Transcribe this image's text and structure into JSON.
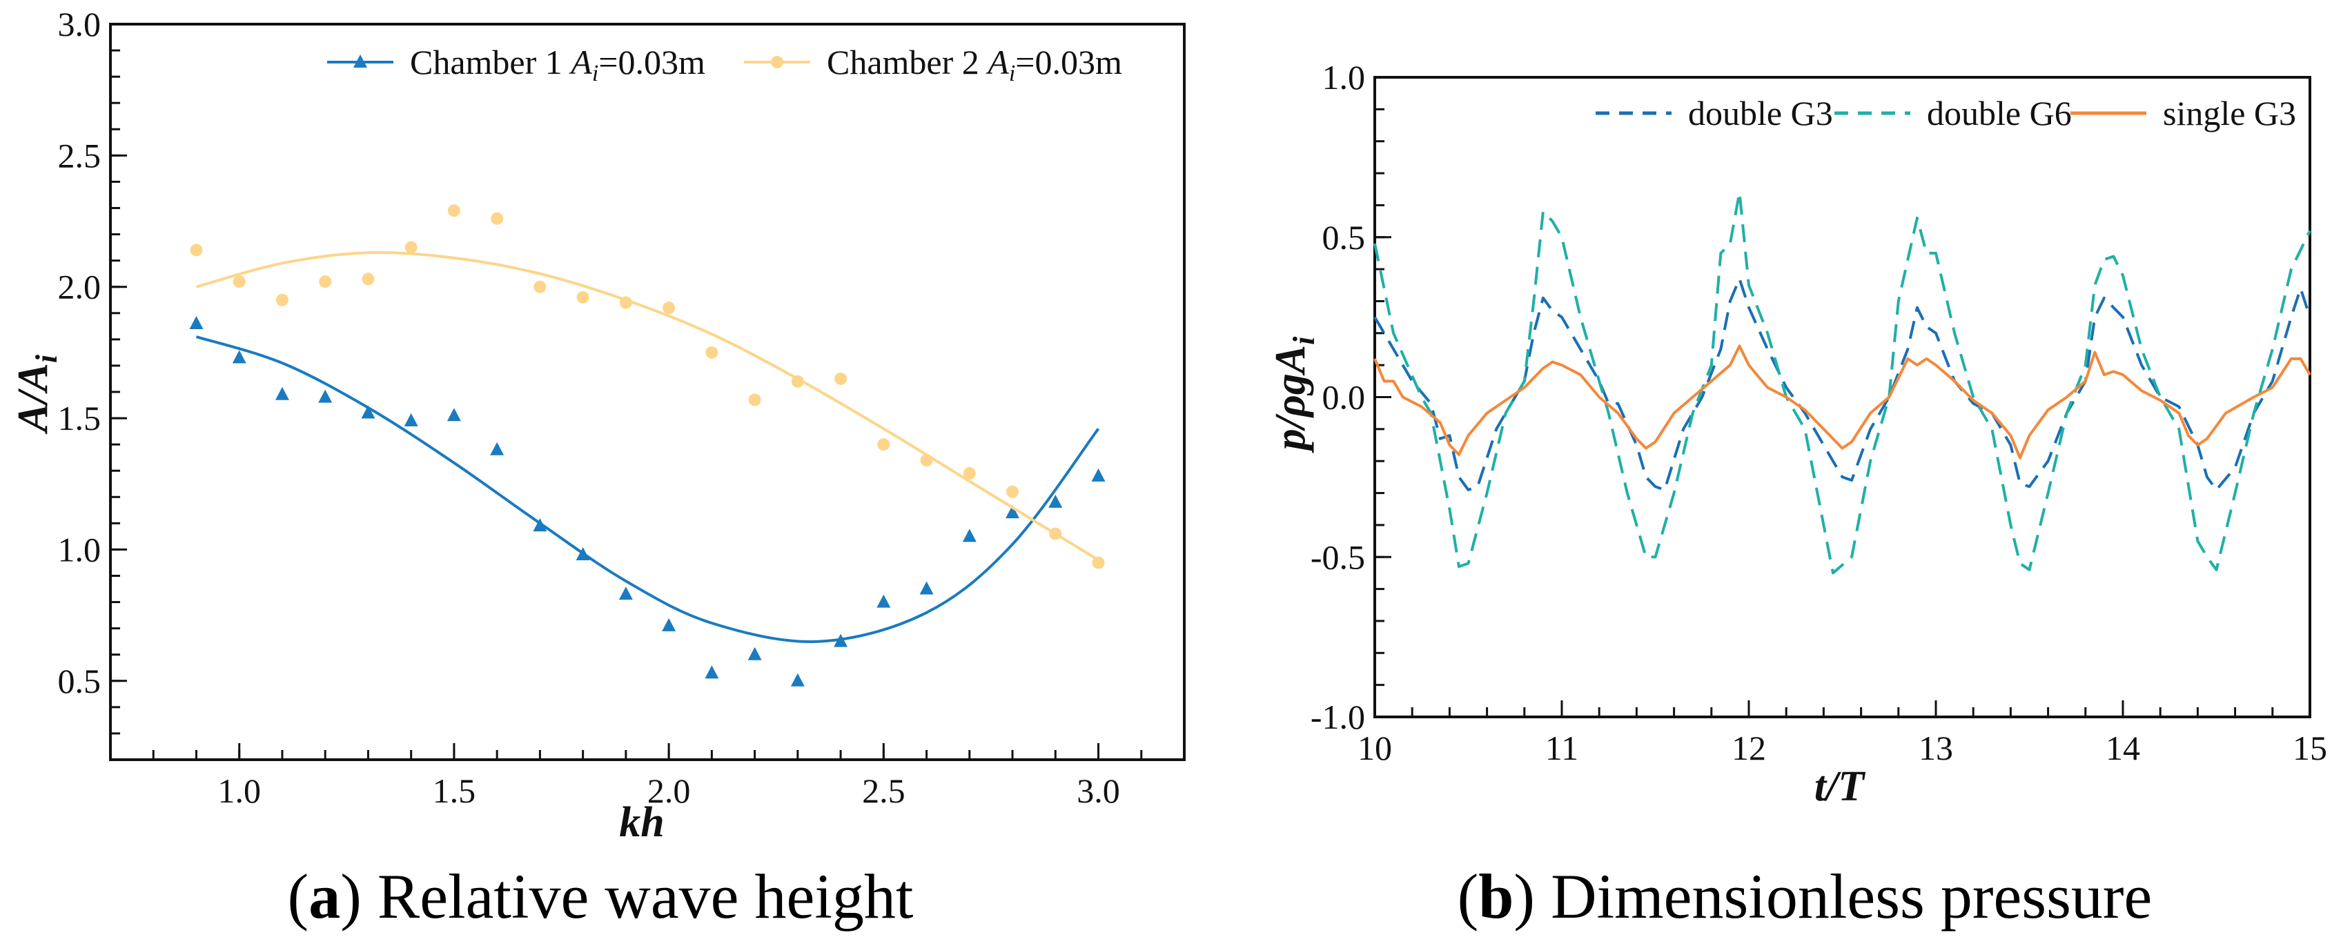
{
  "captions": {
    "a_label": "a",
    "a_text": "Relative wave height",
    "b_label": "b",
    "b_text": "Dimensionless pressure"
  },
  "chart_data": [
    {
      "type": "scatter",
      "title": "(a) Relative wave height",
      "xlabel": "kh",
      "ylabel_main": "A/A",
      "ylabel_sub": "i",
      "xlim": [
        0.7,
        3.2
      ],
      "ylim": [
        0.2,
        3.0
      ],
      "xticks": [
        "1.0",
        "1.5",
        "2.0",
        "2.5",
        "3.0"
      ],
      "yticks": [
        "0.5",
        "1.0",
        "1.5",
        "2.0",
        "2.5",
        "3.0"
      ],
      "grid": false,
      "legend_position": "top-right",
      "x": [
        0.9,
        1.0,
        1.1,
        1.2,
        1.3,
        1.4,
        1.5,
        1.6,
        1.7,
        1.8,
        1.9,
        2.0,
        2.1,
        2.2,
        2.3,
        2.4,
        2.5,
        2.6,
        2.7,
        2.8,
        2.9,
        3.0
      ],
      "series": [
        {
          "name_prefix": "Chamber 1",
          "name_var": "A",
          "name_sub": "i",
          "name_suffix": "=0.03m",
          "color": "#1a7bc0",
          "marker": "triangle",
          "values": [
            1.86,
            1.73,
            1.59,
            1.58,
            1.52,
            1.49,
            1.51,
            1.38,
            1.09,
            0.98,
            0.83,
            0.71,
            0.53,
            0.6,
            0.5,
            0.65,
            0.8,
            0.85,
            1.05,
            1.14,
            1.18,
            1.28
          ],
          "fit_x": [
            0.9,
            1.1,
            1.3,
            1.5,
            1.7,
            1.9,
            2.1,
            2.35,
            2.6,
            2.8,
            3.0
          ],
          "fit_y": [
            1.81,
            1.71,
            1.54,
            1.33,
            1.1,
            0.88,
            0.72,
            0.65,
            0.76,
            1.02,
            1.46
          ]
        },
        {
          "name_prefix": "Chamber 2",
          "name_var": "A",
          "name_sub": "i",
          "name_suffix": "=0.03m",
          "color": "#fdd58a",
          "marker": "circle",
          "values": [
            2.14,
            2.02,
            1.95,
            2.02,
            2.03,
            2.15,
            2.29,
            2.26,
            2.0,
            1.96,
            1.94,
            1.92,
            1.75,
            1.57,
            1.64,
            1.65,
            1.4,
            1.34,
            1.29,
            1.22,
            1.06,
            0.95
          ],
          "fit_x": [
            0.9,
            1.1,
            1.3,
            1.5,
            1.7,
            1.9,
            2.1,
            2.3,
            2.5,
            2.7,
            2.9,
            3.0
          ],
          "fit_y": [
            2.0,
            2.09,
            2.13,
            2.11,
            2.05,
            1.95,
            1.82,
            1.65,
            1.46,
            1.26,
            1.06,
            0.96
          ]
        }
      ]
    },
    {
      "type": "line",
      "title": "(b) Dimensionless pressure",
      "xlabel": "t/T",
      "ylabel_main": "p/ρgA",
      "ylabel_sub": "i",
      "xlim": [
        10,
        15
      ],
      "ylim": [
        -1.0,
        1.0
      ],
      "xticks": [
        "10",
        "11",
        "12",
        "13",
        "14",
        "15"
      ],
      "yticks": [
        "-1.0",
        "-0.5",
        "0.0",
        "0.5",
        "1.0"
      ],
      "grid": false,
      "legend_position": "top-right",
      "series": [
        {
          "name": "double G3",
          "color": "#1a6fb5",
          "style": "dashed",
          "points": [
            [
              10,
              0.25
            ],
            [
              10.1,
              0.15
            ],
            [
              10.2,
              0.05
            ],
            [
              10.3,
              -0.02
            ],
            [
              10.35,
              -0.13
            ],
            [
              10.4,
              -0.12
            ],
            [
              10.45,
              -0.25
            ],
            [
              10.5,
              -0.29
            ],
            [
              10.55,
              -0.28
            ],
            [
              10.65,
              -0.1
            ],
            [
              10.75,
              0
            ],
            [
              10.8,
              0.05
            ],
            [
              10.85,
              0.2
            ],
            [
              10.9,
              0.31
            ],
            [
              10.95,
              0.27
            ],
            [
              11,
              0.25
            ],
            [
              11.1,
              0.15
            ],
            [
              11.2,
              0.05
            ],
            [
              11.25,
              -0.02
            ],
            [
              11.3,
              -0.02
            ],
            [
              11.4,
              -0.15
            ],
            [
              11.45,
              -0.25
            ],
            [
              11.5,
              -0.28
            ],
            [
              11.55,
              -0.29
            ],
            [
              11.65,
              -0.1
            ],
            [
              11.75,
              0
            ],
            [
              11.85,
              0.15
            ],
            [
              11.9,
              0.3
            ],
            [
              11.95,
              0.37
            ],
            [
              12,
              0.28
            ],
            [
              12.1,
              0.15
            ],
            [
              12.2,
              0.03
            ],
            [
              12.3,
              -0.05
            ],
            [
              12.4,
              -0.15
            ],
            [
              12.5,
              -0.25
            ],
            [
              12.55,
              -0.26
            ],
            [
              12.65,
              -0.1
            ],
            [
              12.75,
              0
            ],
            [
              12.85,
              0.15
            ],
            [
              12.9,
              0.28
            ],
            [
              12.95,
              0.22
            ],
            [
              13,
              0.2
            ],
            [
              13.1,
              0.05
            ],
            [
              13.2,
              -0.02
            ],
            [
              13.3,
              -0.05
            ],
            [
              13.4,
              -0.15
            ],
            [
              13.45,
              -0.27
            ],
            [
              13.5,
              -0.28
            ],
            [
              13.6,
              -0.2
            ],
            [
              13.7,
              -0.05
            ],
            [
              13.8,
              0.05
            ],
            [
              13.85,
              0.25
            ],
            [
              13.9,
              0.31
            ],
            [
              13.95,
              0.28
            ],
            [
              14,
              0.25
            ],
            [
              14.1,
              0.1
            ],
            [
              14.2,
              0
            ],
            [
              14.3,
              -0.03
            ],
            [
              14.4,
              -0.15
            ],
            [
              14.45,
              -0.25
            ],
            [
              14.5,
              -0.29
            ],
            [
              14.6,
              -0.22
            ],
            [
              14.7,
              -0.05
            ],
            [
              14.8,
              0.05
            ],
            [
              14.9,
              0.25
            ],
            [
              14.95,
              0.34
            ],
            [
              15,
              0.25
            ]
          ]
        },
        {
          "name": "double G6",
          "color": "#1fb0a6",
          "style": "dashed",
          "points": [
            [
              10,
              0.48
            ],
            [
              10.1,
              0.2
            ],
            [
              10.25,
              0
            ],
            [
              10.3,
              -0.05
            ],
            [
              10.4,
              -0.35
            ],
            [
              10.45,
              -0.53
            ],
            [
              10.5,
              -0.52
            ],
            [
              10.6,
              -0.3
            ],
            [
              10.7,
              -0.05
            ],
            [
              10.8,
              0.05
            ],
            [
              10.85,
              0.3
            ],
            [
              10.9,
              0.58
            ],
            [
              10.95,
              0.55
            ],
            [
              11,
              0.5
            ],
            [
              11.1,
              0.25
            ],
            [
              11.2,
              0.05
            ],
            [
              11.25,
              -0.05
            ],
            [
              11.35,
              -0.3
            ],
            [
              11.45,
              -0.5
            ],
            [
              11.5,
              -0.5
            ],
            [
              11.6,
              -0.3
            ],
            [
              11.7,
              -0.05
            ],
            [
              11.8,
              0.1
            ],
            [
              11.85,
              0.45
            ],
            [
              11.9,
              0.48
            ],
            [
              11.95,
              0.64
            ],
            [
              12,
              0.35
            ],
            [
              12.1,
              0.2
            ],
            [
              12.2,
              0
            ],
            [
              12.3,
              -0.1
            ],
            [
              12.4,
              -0.4
            ],
            [
              12.45,
              -0.55
            ],
            [
              12.55,
              -0.5
            ],
            [
              12.65,
              -0.2
            ],
            [
              12.75,
              0
            ],
            [
              12.8,
              0.3
            ],
            [
              12.9,
              0.56
            ],
            [
              12.95,
              0.45
            ],
            [
              13,
              0.45
            ],
            [
              13.1,
              0.2
            ],
            [
              13.2,
              0
            ],
            [
              13.3,
              -0.1
            ],
            [
              13.4,
              -0.4
            ],
            [
              13.45,
              -0.52
            ],
            [
              13.5,
              -0.54
            ],
            [
              13.6,
              -0.3
            ],
            [
              13.7,
              -0.05
            ],
            [
              13.8,
              0.1
            ],
            [
              13.85,
              0.35
            ],
            [
              13.9,
              0.43
            ],
            [
              13.95,
              0.44
            ],
            [
              14,
              0.38
            ],
            [
              14.1,
              0.15
            ],
            [
              14.2,
              0
            ],
            [
              14.3,
              -0.1
            ],
            [
              14.4,
              -0.45
            ],
            [
              14.45,
              -0.5
            ],
            [
              14.5,
              -0.54
            ],
            [
              14.6,
              -0.3
            ],
            [
              14.7,
              -0.05
            ],
            [
              14.8,
              0.15
            ],
            [
              14.9,
              0.4
            ],
            [
              15,
              0.52
            ]
          ]
        },
        {
          "name": "single G3",
          "color": "#f5883a",
          "style": "solid",
          "points": [
            [
              10,
              0.12
            ],
            [
              10.05,
              0.05
            ],
            [
              10.1,
              0.05
            ],
            [
              10.15,
              0
            ],
            [
              10.25,
              -0.03
            ],
            [
              10.35,
              -0.08
            ],
            [
              10.4,
              -0.15
            ],
            [
              10.45,
              -0.18
            ],
            [
              10.5,
              -0.12
            ],
            [
              10.6,
              -0.05
            ],
            [
              10.7,
              -0.01
            ],
            [
              10.8,
              0.03
            ],
            [
              10.9,
              0.09
            ],
            [
              10.95,
              0.11
            ],
            [
              11,
              0.1
            ],
            [
              11.1,
              0.07
            ],
            [
              11.2,
              0
            ],
            [
              11.3,
              -0.05
            ],
            [
              11.4,
              -0.13
            ],
            [
              11.45,
              -0.16
            ],
            [
              11.5,
              -0.14
            ],
            [
              11.6,
              -0.05
            ],
            [
              11.7,
              0
            ],
            [
              11.8,
              0.05
            ],
            [
              11.9,
              0.1
            ],
            [
              11.95,
              0.16
            ],
            [
              12,
              0.1
            ],
            [
              12.1,
              0.03
            ],
            [
              12.2,
              0
            ],
            [
              12.3,
              -0.04
            ],
            [
              12.4,
              -0.1
            ],
            [
              12.5,
              -0.16
            ],
            [
              12.55,
              -0.14
            ],
            [
              12.65,
              -0.05
            ],
            [
              12.75,
              0
            ],
            [
              12.85,
              0.12
            ],
            [
              12.9,
              0.1
            ],
            [
              12.95,
              0.12
            ],
            [
              13,
              0.1
            ],
            [
              13.1,
              0.05
            ],
            [
              13.2,
              -0.01
            ],
            [
              13.3,
              -0.05
            ],
            [
              13.4,
              -0.12
            ],
            [
              13.45,
              -0.19
            ],
            [
              13.5,
              -0.12
            ],
            [
              13.6,
              -0.04
            ],
            [
              13.7,
              0
            ],
            [
              13.8,
              0.05
            ],
            [
              13.85,
              0.14
            ],
            [
              13.9,
              0.07
            ],
            [
              13.95,
              0.08
            ],
            [
              14,
              0.07
            ],
            [
              14.1,
              0.02
            ],
            [
              14.2,
              -0.01
            ],
            [
              14.3,
              -0.05
            ],
            [
              14.35,
              -0.12
            ],
            [
              14.4,
              -0.15
            ],
            [
              14.45,
              -0.13
            ],
            [
              14.55,
              -0.05
            ],
            [
              14.7,
              0
            ],
            [
              14.8,
              0.03
            ],
            [
              14.9,
              0.12
            ],
            [
              14.95,
              0.12
            ],
            [
              15,
              0.07
            ]
          ]
        }
      ]
    }
  ]
}
